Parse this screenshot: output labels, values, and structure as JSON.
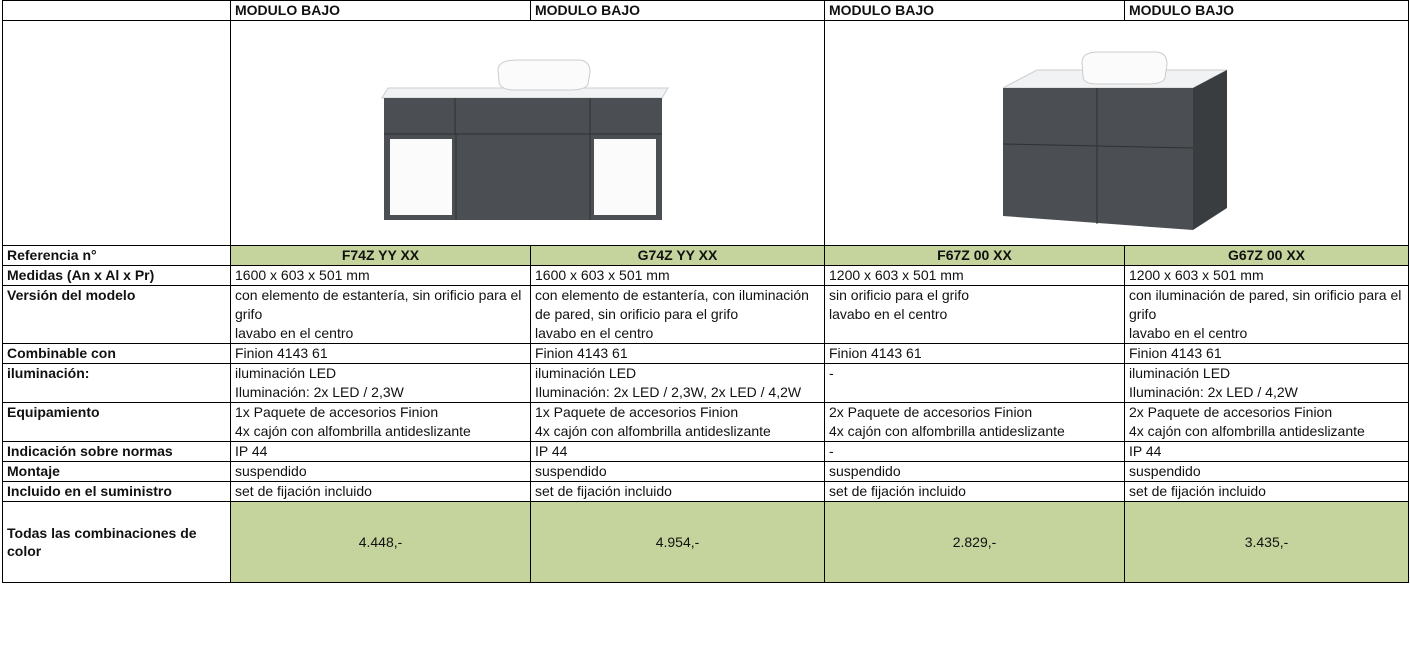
{
  "header": {
    "columns": [
      "MODULO BAJO",
      "MODULO BAJO",
      "MODULO BAJO",
      "MODULO BAJO"
    ]
  },
  "table": {
    "rows": [
      {
        "label": "Referencia n°",
        "cells": [
          "F74Z YY XX",
          "G74Z YY XX",
          "F67Z 00 XX",
          "G67Z 00 XX"
        ]
      },
      {
        "label": "Medidas (An x Al x Pr)",
        "cells": [
          "1600 x 603 x 501 mm",
          "1600 x 603 x 501 mm",
          "1200 x 603 x 501 mm",
          "1200 x 603 x 501 mm"
        ]
      },
      {
        "label": "Versión del modelo",
        "cells": [
          "con elemento de estantería, sin orificio para el grifo\nlavabo en el centro",
          "con elemento de estantería, con iluminación de pared, sin orificio para el grifo\nlavabo en el centro",
          "sin orificio para el grifo\nlavabo en el centro",
          "con iluminación de pared, sin orificio para el grifo\nlavabo en el centro"
        ]
      },
      {
        "label": "Combinable con",
        "cells": [
          "Finion 4143 61",
          "Finion 4143 61",
          "Finion 4143 61",
          "Finion 4143 61"
        ]
      },
      {
        "label": "iluminación:",
        "cells": [
          "iluminación LED\nIluminación: 2x LED / 2,3W",
          "iluminación LED\nIluminación: 2x LED / 2,3W, 2x LED / 4,2W",
          "-",
          "iluminación LED\nIluminación: 2x LED / 4,2W"
        ]
      },
      {
        "label": "Equipamiento",
        "cells": [
          "1x Paquete de accesorios Finion\n4x cajón con alfombrilla antideslizante",
          "1x Paquete de accesorios Finion\n4x cajón con alfombrilla antideslizante",
          "2x Paquete de accesorios Finion\n4x cajón con alfombrilla antideslizante",
          "2x Paquete de accesorios Finion\n4x cajón con alfombrilla antideslizante"
        ]
      },
      {
        "label": "Indicación sobre normas",
        "cells": [
          "IP 44",
          "IP 44",
          "-",
          "IP 44"
        ]
      },
      {
        "label": "Montaje",
        "cells": [
          "suspendido",
          "suspendido",
          "suspendido",
          "suspendido"
        ]
      },
      {
        "label": "Incluido en el suministro",
        "cells": [
          "set de fijación incluido",
          "set de fijación incluido",
          "set de fijación incluido",
          "set de fijación incluido"
        ]
      },
      {
        "label": "Todas las combinaciones de color",
        "cells": [
          "4.448,-",
          "4.954,-",
          "2.829,-",
          "3.435,-"
        ]
      }
    ]
  }
}
